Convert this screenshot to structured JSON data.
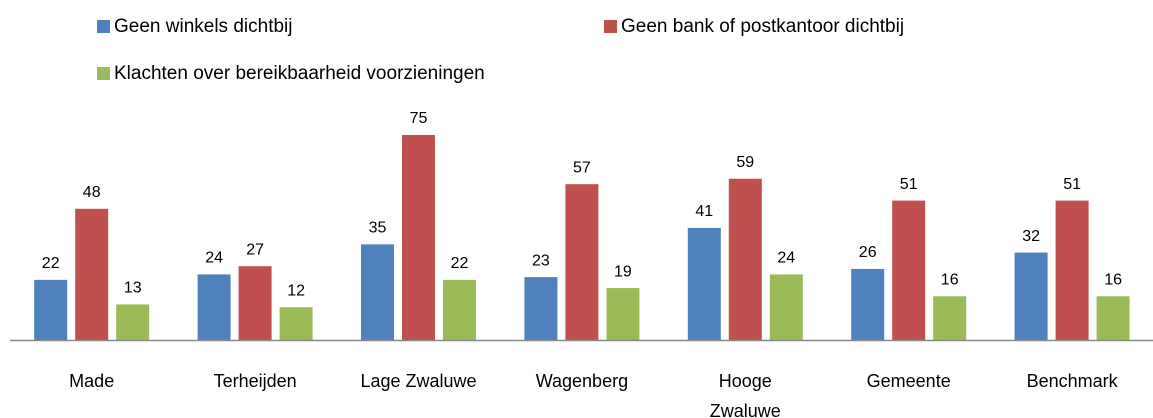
{
  "chart_data": {
    "type": "bar",
    "categories": [
      "Made",
      "Terheijden",
      "Lage Zwaluwe",
      "Wagenberg",
      "Hooge Zwaluwe",
      "Gemeente",
      "Benchmark"
    ],
    "series": [
      {
        "name": "Geen winkels dichtbij",
        "color": "#4f81bd",
        "values": [
          22,
          24,
          35,
          23,
          41,
          26,
          32
        ]
      },
      {
        "name": "Geen bank of postkantoor dichtbij",
        "color": "#c0504d",
        "values": [
          48,
          27,
          75,
          57,
          59,
          51,
          51
        ]
      },
      {
        "name": "Klachten over bereikbaarheid voorzieningen",
        "color": "#9bbb59",
        "values": [
          13,
          12,
          22,
          19,
          24,
          16,
          16
        ]
      }
    ],
    "legend": "top"
  }
}
